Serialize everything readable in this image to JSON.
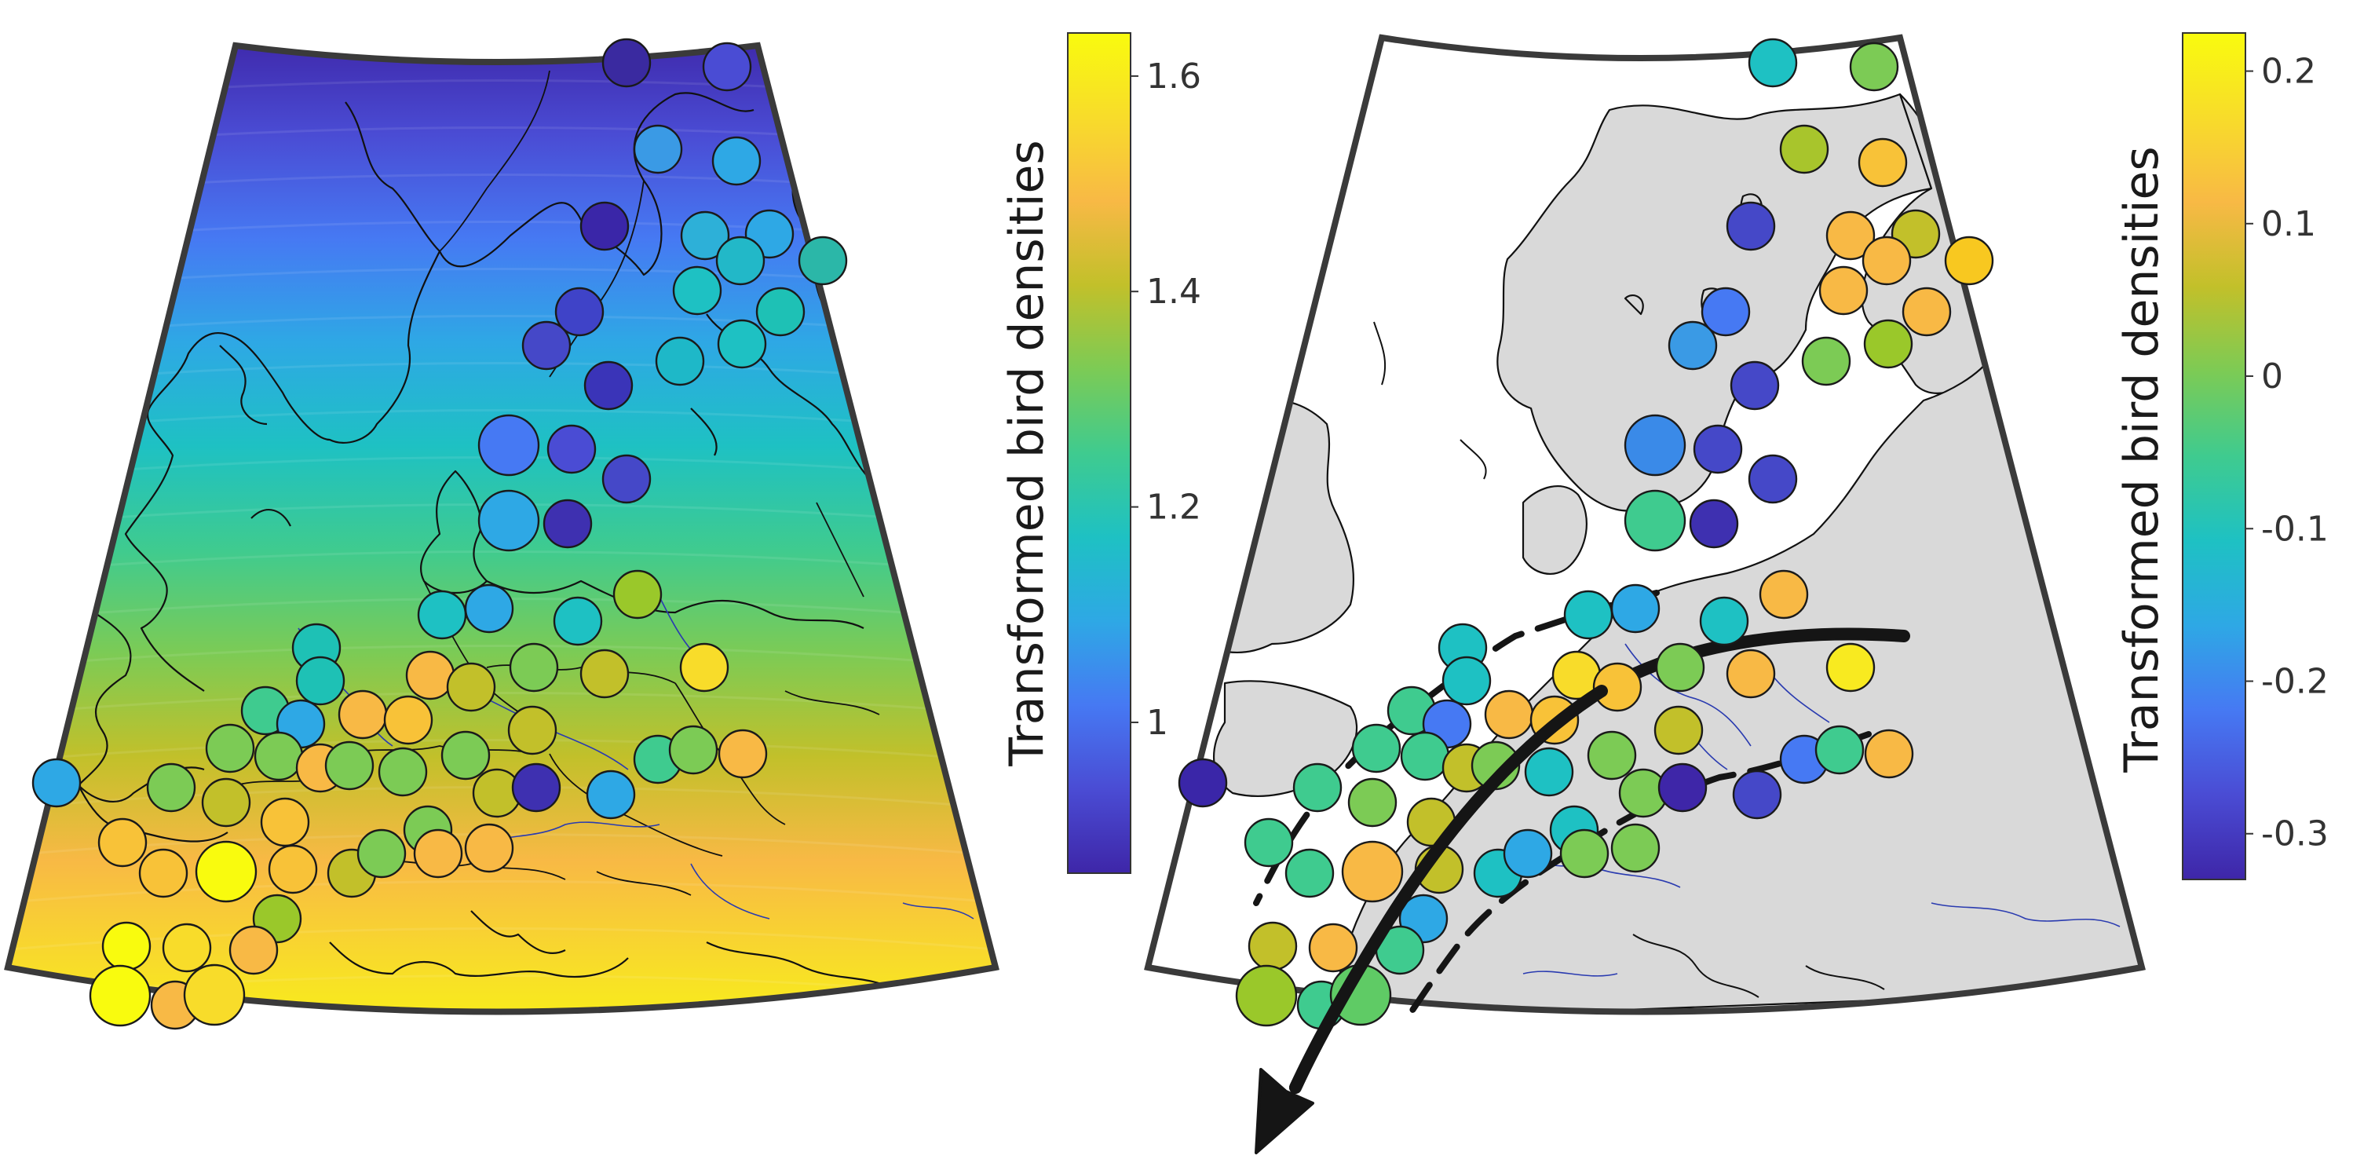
{
  "colorbar_left": {
    "label": "Transformed bird densities",
    "ticks": [
      "1",
      "1.2",
      "1.4",
      "1.6"
    ],
    "tick_values": [
      1,
      1.2,
      1.4,
      1.6
    ],
    "range": [
      0.86,
      1.64
    ]
  },
  "colorbar_right": {
    "label": "Transformed bird densities",
    "ticks": [
      "0.2",
      "0.1",
      "0",
      "-0.1",
      "-0.2",
      "-0.3"
    ],
    "tick_values": [
      0.2,
      0.1,
      0,
      -0.1,
      -0.2,
      -0.3
    ],
    "range": [
      -0.33,
      0.225
    ]
  },
  "colormap": [
    "#3e26a8",
    "#4a4cd4",
    "#4679f3",
    "#2ea8e5",
    "#1ec1c3",
    "#3fcb8f",
    "#7ccb55",
    "#c2c02a",
    "#f8b945",
    "#f8dc2a",
    "#f9fb0e"
  ],
  "colors": {
    "land_right": "#d9d9d9",
    "frame": "#3a3a3a",
    "rivers": "#2a3bb0",
    "arrow": "#151515"
  }
}
